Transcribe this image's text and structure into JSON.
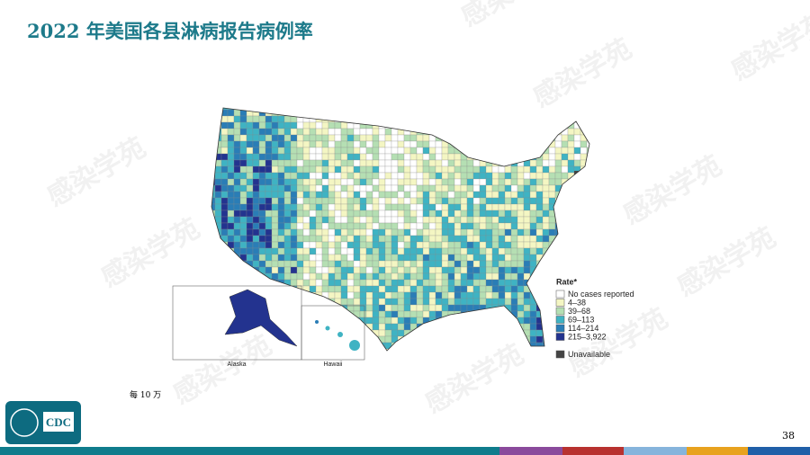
{
  "title": "2022 年美国各县淋病报告病例率",
  "watermark": "感染学苑",
  "map": {
    "legend_title": "Rate*",
    "legend": [
      {
        "label": "No cases reported",
        "color": "#ffffff"
      },
      {
        "label": "4–38",
        "color": "#f4f6c3"
      },
      {
        "label": "39–68",
        "color": "#b5dfb3"
      },
      {
        "label": "69–113",
        "color": "#3fb3c3"
      },
      {
        "label": "114–214",
        "color": "#2a7db6"
      },
      {
        "label": "215–3,922",
        "color": "#23338f"
      },
      {
        "label": "Unavailable",
        "color": "#444444"
      }
    ],
    "insets": [
      "Alaska",
      "Hawaii"
    ]
  },
  "footnote": "每 10 万",
  "logo": "CDC",
  "page_number": "38"
}
